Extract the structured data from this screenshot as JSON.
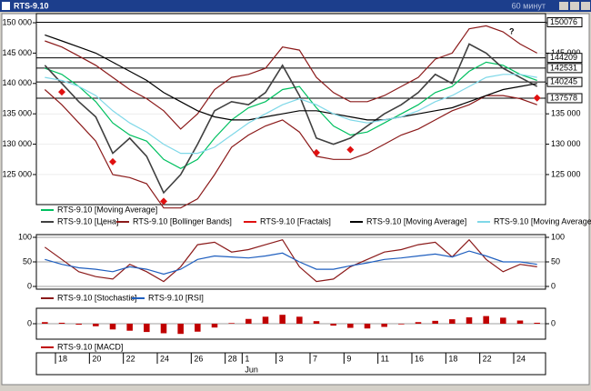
{
  "window_title": "RTS-9.10",
  "window_timeframe": "60 минут",
  "chart_data": [
    {
      "type": "line",
      "yticks": [
        {
          "value": 150000,
          "label": "150 000"
        },
        {
          "value": 145000,
          "label": "145 000"
        },
        {
          "value": 140000,
          "label": "140 000"
        },
        {
          "value": 135000,
          "label": "135 000"
        },
        {
          "value": 130000,
          "label": "130 000"
        },
        {
          "value": 125000,
          "label": "125 000"
        }
      ],
      "ylim": [
        120500,
        151050
      ],
      "price_labels": [
        150076,
        144209,
        142531,
        140245,
        137578
      ],
      "annotation": "?",
      "series": [
        {
          "name": "RTS-9.10 [Moving Average]",
          "color": "#00c060",
          "values": [
            142500,
            141500,
            139500,
            137000,
            133500,
            131500,
            130500,
            127500,
            126000,
            127500,
            131000,
            134000,
            136000,
            137000,
            139000,
            139500,
            136000,
            133000,
            131500,
            132000,
            133500,
            135000,
            136500,
            138500,
            139500,
            142000,
            143500,
            143000,
            141500,
            140500
          ]
        },
        {
          "name": "RTS-9.10 [Цена]",
          "color": "#404040",
          "values": [
            143000,
            140000,
            137000,
            134500,
            128500,
            131000,
            128000,
            122000,
            125000,
            130000,
            135500,
            137000,
            136500,
            138500,
            143000,
            138000,
            131000,
            130000,
            131000,
            133000,
            135000,
            136500,
            138500,
            141500,
            140000,
            146500,
            145000,
            142500,
            141000,
            139500
          ]
        },
        {
          "name": "RTS-9.10 [Bollinger Bands]",
          "color": "#8b1a1a",
          "values": [
            147000,
            146000,
            144500,
            143000,
            141000,
            139000,
            137500,
            135500,
            132500,
            135000,
            139000,
            141000,
            141500,
            142500,
            146000,
            145500,
            141000,
            138500,
            137000,
            137000,
            138000,
            139500,
            141000,
            144000,
            145000,
            149000,
            149500,
            148500,
            146500,
            145000
          ],
          "values_lower": [
            139000,
            136500,
            133500,
            130500,
            125000,
            124500,
            123500,
            119500,
            119500,
            121000,
            125000,
            129500,
            131500,
            133000,
            134000,
            132000,
            128000,
            127500,
            127500,
            128500,
            130000,
            131500,
            132500,
            134000,
            135500,
            136500,
            138000,
            138000,
            137500,
            136500
          ]
        },
        {
          "name": "RTS-9.10 [Fractals]",
          "color": "#e01010",
          "kind": "marker",
          "values": [
            null,
            139500,
            null,
            null,
            128000,
            null,
            null,
            121500,
            null,
            null,
            null,
            null,
            null,
            null,
            null,
            null,
            129500,
            null,
            130000,
            null,
            null,
            null,
            null,
            null,
            null,
            null,
            null,
            null,
            null,
            138500
          ]
        },
        {
          "name": "RTS-9.10 [Moving Average]",
          "color": "#000000",
          "values": [
            148000,
            147000,
            146000,
            145000,
            143500,
            142000,
            140500,
            138500,
            137000,
            135500,
            134500,
            134000,
            134000,
            134500,
            135000,
            135500,
            135500,
            135000,
            134500,
            134000,
            134000,
            134500,
            135000,
            135500,
            136000,
            137000,
            138000,
            139000,
            139500,
            140000
          ]
        },
        {
          "name": "RTS-9.10 [Moving Average]",
          "color": "#7fd8e8",
          "values": [
            141000,
            140500,
            139500,
            138000,
            135500,
            133500,
            132000,
            130000,
            128500,
            128500,
            129500,
            131500,
            133500,
            135000,
            136500,
            137500,
            136500,
            135000,
            134000,
            133500,
            134000,
            134500,
            135500,
            137000,
            138000,
            139500,
            141000,
            141500,
            141500,
            141000
          ]
        }
      ]
    },
    {
      "type": "line",
      "yticks": [
        0,
        50,
        100
      ],
      "ylim": [
        0,
        100
      ],
      "series": [
        {
          "name": "RTS-9.10 [Stochastic]",
          "color": "#8b1a1a",
          "values": [
            80,
            55,
            30,
            20,
            15,
            45,
            30,
            10,
            40,
            85,
            90,
            70,
            75,
            85,
            95,
            40,
            10,
            15,
            40,
            55,
            70,
            75,
            85,
            90,
            60,
            95,
            55,
            30,
            45,
            40
          ]
        },
        {
          "name": "RTS-9.10 [RSI]",
          "color": "#1f5fbf",
          "values": [
            55,
            45,
            38,
            35,
            30,
            40,
            35,
            25,
            35,
            55,
            62,
            60,
            58,
            62,
            68,
            50,
            35,
            35,
            42,
            48,
            55,
            58,
            62,
            66,
            60,
            72,
            62,
            50,
            50,
            45
          ]
        }
      ]
    },
    {
      "type": "bar",
      "yticks": [
        0
      ],
      "ylim": [
        -4000,
        4000
      ],
      "series": [
        {
          "name": "RTS-9.10 [MACD]",
          "color": "#c00000",
          "values": [
            500,
            300,
            -300,
            -800,
            -1800,
            -2200,
            -2600,
            -3000,
            -3200,
            -2500,
            -1200,
            200,
            1500,
            2200,
            2800,
            2200,
            800,
            -600,
            -1300,
            -1500,
            -1000,
            -200,
            500,
            900,
            1400,
            2000,
            2400,
            1900,
            1000,
            300
          ]
        }
      ],
      "categories": [
        null,
        "18",
        null,
        "20",
        null,
        "22",
        null,
        "24",
        null,
        "26",
        null,
        "28",
        "1",
        null,
        "3",
        null,
        "7",
        null,
        "9",
        null,
        "11",
        null,
        "16",
        null,
        "18",
        null,
        "22",
        null,
        "24",
        null
      ],
      "x_group_label": "Jun"
    }
  ]
}
